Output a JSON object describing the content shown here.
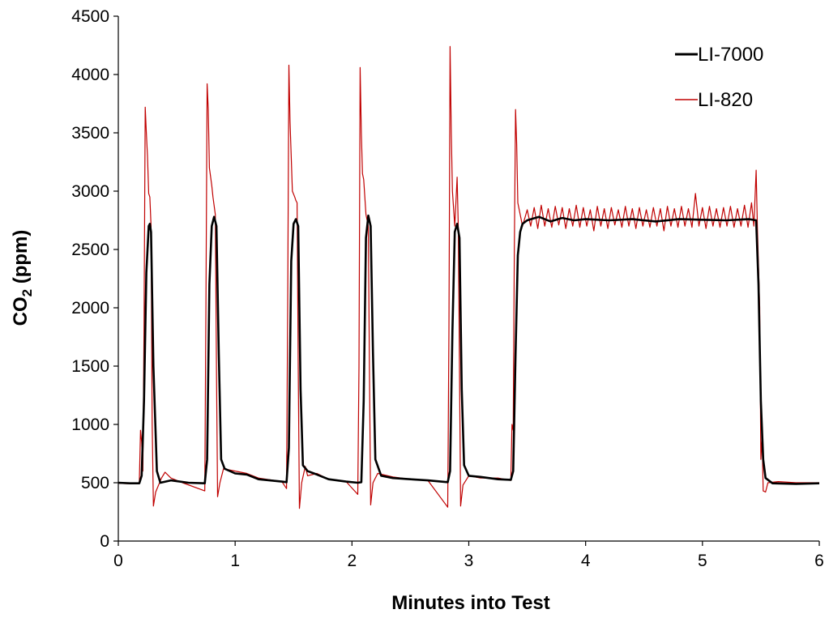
{
  "chart_data": {
    "type": "line",
    "title": "",
    "xlabel": "Minutes into Test",
    "ylabel_main": "CO",
    "ylabel_sub": "2",
    "ylabel_unit": " (ppm)",
    "xlim": [
      0,
      6
    ],
    "ylim": [
      0,
      4500
    ],
    "x_ticks": [
      0,
      1,
      2,
      3,
      4,
      5,
      6
    ],
    "y_ticks": [
      0,
      500,
      1000,
      1500,
      2000,
      2500,
      3000,
      3500,
      4000,
      4500
    ],
    "grid": false,
    "legend_position": "top-right",
    "series": [
      {
        "name": "LI-7000",
        "color": "#000000",
        "values": [
          [
            0.0,
            500
          ],
          [
            0.1,
            495
          ],
          [
            0.18,
            495
          ],
          [
            0.2,
            560
          ],
          [
            0.22,
            1200
          ],
          [
            0.24,
            2300
          ],
          [
            0.26,
            2700
          ],
          [
            0.27,
            2720
          ],
          [
            0.28,
            2650
          ],
          [
            0.3,
            1500
          ],
          [
            0.33,
            600
          ],
          [
            0.36,
            500
          ],
          [
            0.45,
            520
          ],
          [
            0.6,
            500
          ],
          [
            0.74,
            495
          ],
          [
            0.76,
            700
          ],
          [
            0.78,
            2200
          ],
          [
            0.8,
            2700
          ],
          [
            0.82,
            2780
          ],
          [
            0.84,
            2700
          ],
          [
            0.86,
            1600
          ],
          [
            0.88,
            700
          ],
          [
            0.91,
            620
          ],
          [
            1.0,
            580
          ],
          [
            1.1,
            570
          ],
          [
            1.2,
            530
          ],
          [
            1.4,
            510
          ],
          [
            1.44,
            505
          ],
          [
            1.46,
            800
          ],
          [
            1.48,
            2400
          ],
          [
            1.5,
            2720
          ],
          [
            1.52,
            2760
          ],
          [
            1.54,
            2700
          ],
          [
            1.56,
            1300
          ],
          [
            1.58,
            650
          ],
          [
            1.62,
            600
          ],
          [
            1.7,
            570
          ],
          [
            1.8,
            530
          ],
          [
            1.95,
            510
          ],
          [
            2.05,
            500
          ],
          [
            2.08,
            505
          ],
          [
            2.1,
            1200
          ],
          [
            2.12,
            2600
          ],
          [
            2.14,
            2790
          ],
          [
            2.16,
            2700
          ],
          [
            2.18,
            1600
          ],
          [
            2.2,
            700
          ],
          [
            2.25,
            560
          ],
          [
            2.35,
            540
          ],
          [
            2.5,
            530
          ],
          [
            2.65,
            520
          ],
          [
            2.82,
            505
          ],
          [
            2.84,
            600
          ],
          [
            2.86,
            1800
          ],
          [
            2.88,
            2650
          ],
          [
            2.9,
            2720
          ],
          [
            2.92,
            2600
          ],
          [
            2.94,
            1300
          ],
          [
            2.96,
            650
          ],
          [
            3.0,
            560
          ],
          [
            3.1,
            550
          ],
          [
            3.25,
            530
          ],
          [
            3.36,
            525
          ],
          [
            3.38,
            600
          ],
          [
            3.4,
            1600
          ],
          [
            3.42,
            2450
          ],
          [
            3.44,
            2650
          ],
          [
            3.46,
            2720
          ],
          [
            3.5,
            2750
          ],
          [
            3.6,
            2780
          ],
          [
            3.7,
            2740
          ],
          [
            3.8,
            2770
          ],
          [
            3.9,
            2750
          ],
          [
            4.0,
            2760
          ],
          [
            4.2,
            2750
          ],
          [
            4.4,
            2760
          ],
          [
            4.6,
            2740
          ],
          [
            4.8,
            2760
          ],
          [
            5.0,
            2755
          ],
          [
            5.2,
            2750
          ],
          [
            5.4,
            2760
          ],
          [
            5.46,
            2750
          ],
          [
            5.48,
            2200
          ],
          [
            5.5,
            1200
          ],
          [
            5.52,
            700
          ],
          [
            5.54,
            540
          ],
          [
            5.6,
            495
          ],
          [
            5.8,
            490
          ],
          [
            6.0,
            495
          ]
        ]
      },
      {
        "name": "LI-820",
        "color": "#c00000",
        "values": [
          [
            0.0,
            495
          ],
          [
            0.12,
            490
          ],
          [
            0.18,
            495
          ],
          [
            0.19,
            950
          ],
          [
            0.2,
            850
          ],
          [
            0.21,
            600
          ],
          [
            0.22,
            1800
          ],
          [
            0.23,
            3720
          ],
          [
            0.24,
            3500
          ],
          [
            0.25,
            3300
          ],
          [
            0.26,
            2980
          ],
          [
            0.27,
            2950
          ],
          [
            0.28,
            2700
          ],
          [
            0.29,
            1000
          ],
          [
            0.3,
            300
          ],
          [
            0.32,
            420
          ],
          [
            0.37,
            540
          ],
          [
            0.4,
            590
          ],
          [
            0.45,
            540
          ],
          [
            0.55,
            500
          ],
          [
            0.74,
            430
          ],
          [
            0.75,
            2000
          ],
          [
            0.76,
            3920
          ],
          [
            0.77,
            3700
          ],
          [
            0.78,
            3200
          ],
          [
            0.8,
            3050
          ],
          [
            0.81,
            2950
          ],
          [
            0.83,
            2800
          ],
          [
            0.84,
            1500
          ],
          [
            0.85,
            380
          ],
          [
            0.87,
            500
          ],
          [
            0.9,
            620
          ],
          [
            1.0,
            600
          ],
          [
            1.1,
            580
          ],
          [
            1.2,
            540
          ],
          [
            1.4,
            510
          ],
          [
            1.44,
            450
          ],
          [
            1.45,
            2000
          ],
          [
            1.46,
            4080
          ],
          [
            1.47,
            3600
          ],
          [
            1.49,
            3000
          ],
          [
            1.51,
            2950
          ],
          [
            1.52,
            2920
          ],
          [
            1.53,
            2900
          ],
          [
            1.54,
            1500
          ],
          [
            1.55,
            280
          ],
          [
            1.57,
            500
          ],
          [
            1.6,
            640
          ],
          [
            1.62,
            560
          ],
          [
            1.7,
            580
          ],
          [
            1.8,
            530
          ],
          [
            1.95,
            510
          ],
          [
            2.05,
            400
          ],
          [
            2.06,
            1500
          ],
          [
            2.07,
            4060
          ],
          [
            2.08,
            3500
          ],
          [
            2.09,
            3150
          ],
          [
            2.1,
            3100
          ],
          [
            2.12,
            2800
          ],
          [
            2.14,
            2700
          ],
          [
            2.15,
            1400
          ],
          [
            2.16,
            310
          ],
          [
            2.18,
            500
          ],
          [
            2.22,
            580
          ],
          [
            2.35,
            550
          ],
          [
            2.5,
            530
          ],
          [
            2.65,
            520
          ],
          [
            2.82,
            290
          ],
          [
            2.83,
            1800
          ],
          [
            2.84,
            4240
          ],
          [
            2.85,
            3500
          ],
          [
            2.86,
            3000
          ],
          [
            2.88,
            2700
          ],
          [
            2.9,
            3120
          ],
          [
            2.91,
            2700
          ],
          [
            2.92,
            1500
          ],
          [
            2.93,
            300
          ],
          [
            2.95,
            480
          ],
          [
            3.0,
            560
          ],
          [
            3.1,
            540
          ],
          [
            3.25,
            540
          ],
          [
            3.36,
            520
          ],
          [
            3.37,
            1000
          ],
          [
            3.38,
            950
          ],
          [
            3.39,
            2500
          ],
          [
            3.4,
            3700
          ],
          [
            3.41,
            3400
          ],
          [
            3.42,
            2900
          ],
          [
            3.44,
            2800
          ],
          [
            3.46,
            2700
          ],
          [
            3.5,
            2840
          ],
          [
            3.53,
            2700
          ],
          [
            3.56,
            2860
          ],
          [
            3.59,
            2680
          ],
          [
            3.62,
            2880
          ],
          [
            3.65,
            2700
          ],
          [
            3.68,
            2850
          ],
          [
            3.71,
            2690
          ],
          [
            3.74,
            2870
          ],
          [
            3.77,
            2710
          ],
          [
            3.8,
            2860
          ],
          [
            3.83,
            2680
          ],
          [
            3.86,
            2850
          ],
          [
            3.89,
            2700
          ],
          [
            3.92,
            2880
          ],
          [
            3.95,
            2690
          ],
          [
            3.98,
            2860
          ],
          [
            4.01,
            2700
          ],
          [
            4.04,
            2840
          ],
          [
            4.07,
            2660
          ],
          [
            4.1,
            2870
          ],
          [
            4.13,
            2700
          ],
          [
            4.16,
            2850
          ],
          [
            4.19,
            2680
          ],
          [
            4.22,
            2860
          ],
          [
            4.25,
            2710
          ],
          [
            4.28,
            2840
          ],
          [
            4.31,
            2690
          ],
          [
            4.34,
            2870
          ],
          [
            4.37,
            2700
          ],
          [
            4.4,
            2850
          ],
          [
            4.43,
            2680
          ],
          [
            4.46,
            2860
          ],
          [
            4.49,
            2700
          ],
          [
            4.52,
            2840
          ],
          [
            4.55,
            2690
          ],
          [
            4.58,
            2860
          ],
          [
            4.61,
            2700
          ],
          [
            4.64,
            2850
          ],
          [
            4.67,
            2660
          ],
          [
            4.7,
            2870
          ],
          [
            4.73,
            2700
          ],
          [
            4.76,
            2850
          ],
          [
            4.79,
            2690
          ],
          [
            4.82,
            2870
          ],
          [
            4.85,
            2700
          ],
          [
            4.88,
            2850
          ],
          [
            4.91,
            2690
          ],
          [
            4.94,
            2980
          ],
          [
            4.97,
            2700
          ],
          [
            5.0,
            2860
          ],
          [
            5.03,
            2680
          ],
          [
            5.06,
            2870
          ],
          [
            5.09,
            2700
          ],
          [
            5.12,
            2850
          ],
          [
            5.15,
            2690
          ],
          [
            5.18,
            2860
          ],
          [
            5.21,
            2700
          ],
          [
            5.24,
            2870
          ],
          [
            5.27,
            2690
          ],
          [
            5.3,
            2850
          ],
          [
            5.33,
            2700
          ],
          [
            5.36,
            2880
          ],
          [
            5.39,
            2690
          ],
          [
            5.42,
            2900
          ],
          [
            5.44,
            2700
          ],
          [
            5.46,
            3180
          ],
          [
            5.47,
            2700
          ],
          [
            5.49,
            2000
          ],
          [
            5.5,
            700
          ],
          [
            5.51,
            900
          ],
          [
            5.52,
            430
          ],
          [
            5.54,
            420
          ],
          [
            5.56,
            500
          ],
          [
            5.65,
            510
          ],
          [
            5.8,
            500
          ],
          [
            6.0,
            500
          ]
        ]
      }
    ]
  }
}
